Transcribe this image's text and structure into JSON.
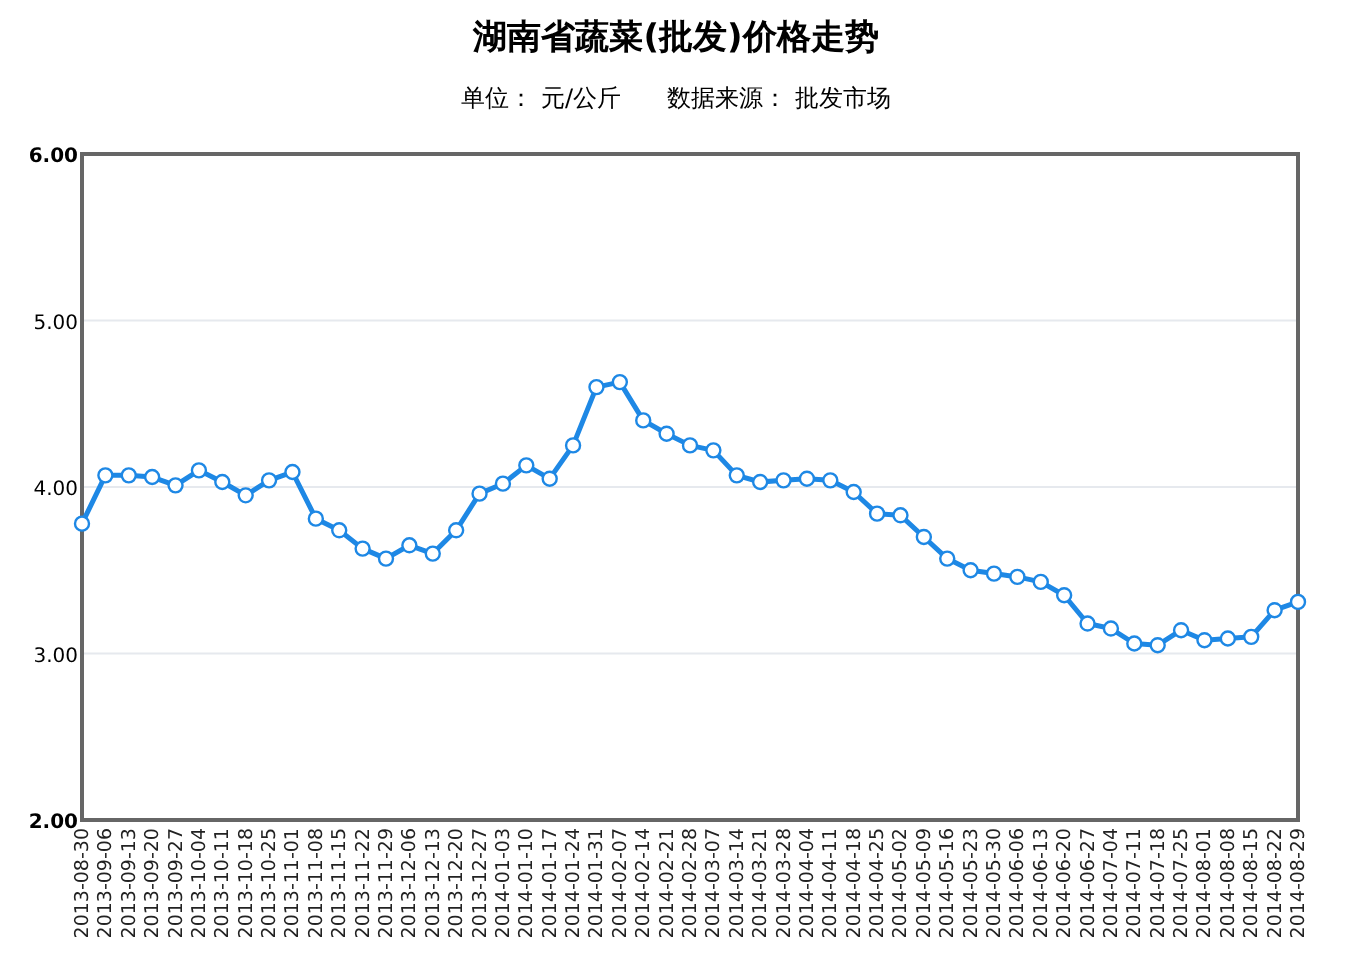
{
  "chart_data": {
    "type": "line",
    "title": "湖南省蔬菜(批发)价格走势",
    "subtitle": "单位： 元/公斤      数据来源： 批发市场",
    "categories": [
      "2013-08-30",
      "2013-09-06",
      "2013-09-13",
      "2013-09-20",
      "2013-09-27",
      "2013-10-04",
      "2013-10-11",
      "2013-10-18",
      "2013-10-25",
      "2013-11-01",
      "2013-11-08",
      "2013-11-15",
      "2013-11-22",
      "2013-11-29",
      "2013-12-06",
      "2013-12-13",
      "2013-12-20",
      "2013-12-27",
      "2014-01-03",
      "2014-01-10",
      "2014-01-17",
      "2014-01-24",
      "2014-01-31",
      "2014-02-07",
      "2014-02-14",
      "2014-02-21",
      "2014-02-28",
      "2014-03-07",
      "2014-03-14",
      "2014-03-21",
      "2014-03-28",
      "2014-04-04",
      "2014-04-11",
      "2014-04-18",
      "2014-04-25",
      "2014-05-02",
      "2014-05-09",
      "2014-05-16",
      "2014-05-23",
      "2014-05-30",
      "2014-06-06",
      "2014-06-13",
      "2014-06-20",
      "2014-06-27",
      "2014-07-04",
      "2014-07-11",
      "2014-07-18",
      "2014-07-25",
      "2014-08-01",
      "2014-08-08",
      "2014-08-15",
      "2014-08-22",
      "2014-08-29"
    ],
    "series": [
      {
        "color": "#1e88e5",
        "values": [
          3.78,
          4.07,
          4.07,
          4.06,
          4.01,
          4.1,
          4.03,
          3.95,
          4.04,
          4.09,
          3.81,
          3.74,
          3.63,
          3.57,
          3.65,
          3.6,
          3.74,
          3.96,
          4.02,
          4.13,
          4.05,
          4.25,
          4.6,
          4.63,
          4.4,
          4.32,
          4.25,
          4.22,
          4.07,
          4.03,
          4.04,
          4.05,
          4.04,
          3.97,
          3.84,
          3.83,
          3.7,
          3.57,
          3.5,
          3.48,
          3.46,
          3.43,
          3.35,
          3.18,
          3.15,
          3.06,
          3.05,
          3.14,
          3.08,
          3.09,
          3.1,
          3.26,
          3.31
        ]
      }
    ],
    "ylim": [
      2,
      6
    ],
    "yticks": [
      {
        "value": 2,
        "label": "2.00"
      },
      {
        "value": 3,
        "label": "3.00"
      },
      {
        "value": 4,
        "label": "4.00"
      },
      {
        "value": 5,
        "label": "5.00"
      },
      {
        "value": 6,
        "label": "6.00"
      }
    ],
    "grid": "y",
    "marker": "circle",
    "line_style": "solid"
  }
}
